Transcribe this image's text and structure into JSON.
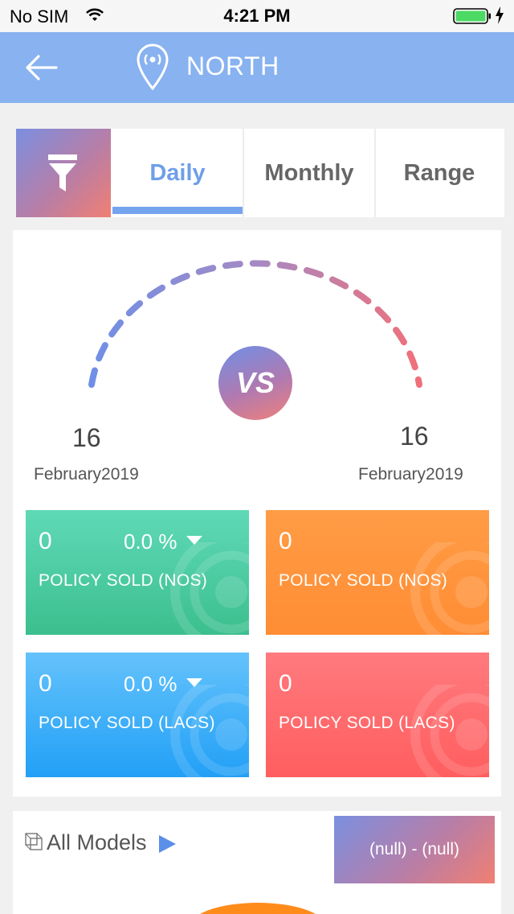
{
  "status_bar": {
    "carrier": "No SIM",
    "time": "4:21 PM"
  },
  "nav": {
    "title": "NORTH"
  },
  "tabs": [
    {
      "label": "Daily",
      "active": true
    },
    {
      "label": "Monthly",
      "active": false
    },
    {
      "label": "Range",
      "active": false
    }
  ],
  "comparison": {
    "left": {
      "day": "16",
      "month": "February2019"
    },
    "center": "VS",
    "right": {
      "day": "16",
      "month": "February2019"
    }
  },
  "stats": [
    {
      "value": "0",
      "percent": "0.0 %",
      "label": "POLICY SOLD (NOS)",
      "color": "#4ccda2"
    },
    {
      "value": "0",
      "label": "POLICY SOLD (NOS)",
      "color": "#ff953c"
    },
    {
      "value": "0",
      "percent": "0.0 %",
      "label": "POLICY SOLD (LACS)",
      "color": "#43b1f9"
    },
    {
      "value": "0",
      "label": "POLICY SOLD (LACS)",
      "color": "#ff6c6e"
    }
  ],
  "models": {
    "label": "All Models",
    "range": "(null) - (null)"
  },
  "icons": {
    "back": "back-arrow-icon",
    "location": "location-pin-icon",
    "filter": "filter-funnel-icon",
    "models": "models-cube-icon",
    "wifi": "wifi-icon",
    "battery": "battery-icon"
  },
  "colors": {
    "nav": "#88b2f0",
    "accent": "#6e9fe8",
    "gauge_start": "#6f8fe6",
    "gauge_end": "#f0707a"
  }
}
